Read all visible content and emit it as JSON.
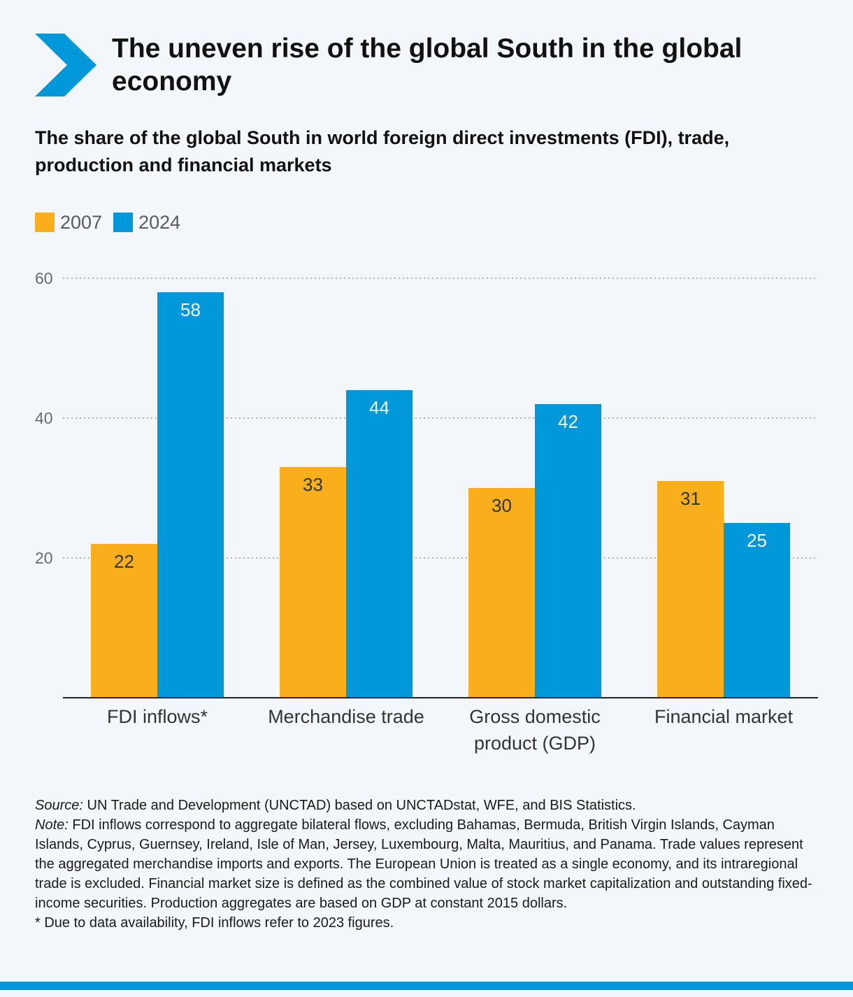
{
  "header": {
    "title": "The uneven rise of the global South in the global economy",
    "subtitle": "The share of the global South in world foreign direct investments (FDI), trade, production and financial markets"
  },
  "colors": {
    "series_2007": "#f9ae1b",
    "series_2024": "#0098d8",
    "accent": "#0098d8"
  },
  "legend": [
    {
      "label": "2007",
      "color": "#f9ae1b"
    },
    {
      "label": "2024",
      "color": "#0098d8"
    }
  ],
  "chart_data": {
    "type": "bar",
    "categories": [
      [
        "FDI inflows*"
      ],
      [
        "Merchandise trade"
      ],
      [
        "Gross domestic",
        "product (GDP)"
      ],
      [
        "Financial market"
      ]
    ],
    "series": [
      {
        "name": "2007",
        "values": [
          22,
          33,
          30,
          31
        ]
      },
      {
        "name": "2024",
        "values": [
          58,
          44,
          42,
          25
        ]
      }
    ],
    "yticks": [
      20,
      40,
      60
    ],
    "ylim": [
      0,
      60
    ],
    "grid": true,
    "legend_position": "top-left"
  },
  "notes": {
    "source_lead": "Source:",
    "source_text": " UN Trade and Development (UNCTAD) based on UNCTADstat, WFE, and BIS Statistics.",
    "note_lead": "Note:",
    "note_text": " FDI inflows correspond to aggregate bilateral flows, excluding Bahamas, Bermuda, British Virgin Islands, Cayman Islands, Cyprus, Guernsey, Ireland, Isle of Man, Jersey, Luxembourg, Malta, Mauritius, and Panama. Trade values represent the aggregated merchandise imports and exports. The European Union is treated as a single economy, and its intraregional trade is excluded. Financial market size is defined as the combined value of stock market capitalization and outstanding fixed-income securities. Production aggregates are based on GDP at constant 2015 dollars.",
    "footnote": "* Due to data availability, FDI inflows refer to 2023 figures."
  }
}
